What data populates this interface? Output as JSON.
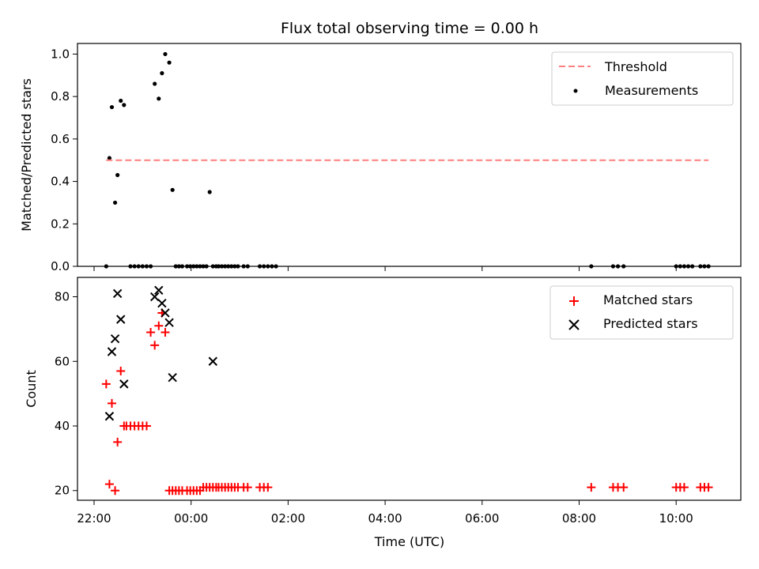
{
  "chart_data": [
    {
      "type": "scatter",
      "title": "Flux total observing time = 0.00 h",
      "xlabel": "",
      "ylabel": "Matched/Predicted stars",
      "xlim": [
        "21:45",
        "11:20"
      ],
      "ylim": [
        0,
        1.05
      ],
      "y_ticks": [
        0.0,
        0.2,
        0.4,
        0.6,
        0.8,
        1.0
      ],
      "y_tick_labels": [
        "0.0",
        "0.2",
        "0.4",
        "0.6",
        "0.8",
        "1.0"
      ],
      "legend_position": "upper right",
      "threshold": {
        "name": "Threshold",
        "value": 0.5,
        "x_start": "22:15",
        "x_end": "10:40",
        "color": "#ff7f7f"
      },
      "series": [
        {
          "name": "Measurements",
          "color": "#000000",
          "marker": "dot",
          "x": [
            "22:15",
            "22:19",
            "22:22",
            "22:26",
            "22:29",
            "22:33",
            "22:37",
            "22:45",
            "22:50",
            "22:55",
            "23:00",
            "23:05",
            "23:10",
            "23:15",
            "23:20",
            "23:24",
            "23:28",
            "23:33",
            "23:37",
            "23:41",
            "23:45",
            "23:49",
            "23:55",
            "23:59",
            "00:03",
            "00:07",
            "00:11",
            "00:15",
            "00:19",
            "00:23",
            "00:27",
            "00:31",
            "00:34",
            "00:38",
            "00:42",
            "00:46",
            "00:50",
            "00:54",
            "00:58",
            "01:05",
            "01:10",
            "01:25",
            "01:30",
            "01:35",
            "01:40",
            "01:45",
            "08:15",
            "08:42",
            "08:48",
            "08:55",
            "10:00",
            "10:05",
            "10:10",
            "10:15",
            "10:20",
            "10:30",
            "10:35",
            "10:40"
          ],
          "y": [
            0.0,
            0.51,
            0.75,
            0.3,
            0.43,
            0.78,
            0.76,
            0.0,
            0.0,
            0.0,
            0.0,
            0.0,
            0.0,
            0.86,
            0.79,
            0.91,
            1.0,
            0.96,
            0.36,
            0.0,
            0.0,
            0.0,
            0.0,
            0.0,
            0.0,
            0.0,
            0.0,
            0.0,
            0.0,
            0.35,
            0.0,
            0.0,
            0.0,
            0.0,
            0.0,
            0.0,
            0.0,
            0.0,
            0.0,
            0.0,
            0.0,
            0.0,
            0.0,
            0.0,
            0.0,
            0.0,
            0.0,
            0.0,
            0.0,
            0.0,
            0.0,
            0.0,
            0.0,
            0.0,
            0.0,
            0.0,
            0.0,
            0.0
          ]
        }
      ]
    },
    {
      "type": "scatter",
      "title": "",
      "xlabel": "Time (UTC)",
      "ylabel": "Count",
      "xlim": [
        "21:45",
        "11:20"
      ],
      "ylim": [
        17,
        86
      ],
      "x_tick_labels": [
        "22:00",
        "00:00",
        "02:00",
        "04:00",
        "06:00",
        "08:00",
        "10:00"
      ],
      "y_ticks": [
        20,
        40,
        60,
        80
      ],
      "y_tick_labels": [
        "20",
        "40",
        "60",
        "80"
      ],
      "legend_position": "upper right",
      "series": [
        {
          "name": "Matched stars",
          "color": "#ff0000",
          "marker": "plus",
          "x": [
            "22:15",
            "22:19",
            "22:22",
            "22:26",
            "22:29",
            "22:33",
            "22:37",
            "22:40",
            "22:45",
            "22:50",
            "22:55",
            "23:00",
            "23:05",
            "23:10",
            "23:15",
            "23:20",
            "23:24",
            "23:28",
            "23:33",
            "23:37",
            "23:41",
            "23:45",
            "23:49",
            "23:55",
            "23:59",
            "00:03",
            "00:07",
            "00:11",
            "00:15",
            "00:19",
            "00:23",
            "00:27",
            "00:31",
            "00:34",
            "00:38",
            "00:42",
            "00:46",
            "00:50",
            "00:54",
            "00:58",
            "01:05",
            "01:10",
            "01:25",
            "01:30",
            "01:35",
            "08:15",
            "08:42",
            "08:48",
            "08:55",
            "10:00",
            "10:05",
            "10:10",
            "10:30",
            "10:35",
            "10:40"
          ],
          "y": [
            53,
            22,
            47,
            20,
            35,
            57,
            40,
            40,
            40,
            40,
            40,
            40,
            40,
            69,
            65,
            71,
            75,
            69,
            20,
            20,
            20,
            20,
            20,
            20,
            20,
            20,
            20,
            20,
            21,
            21,
            21,
            21,
            21,
            21,
            21,
            21,
            21,
            21,
            21,
            21,
            21,
            21,
            21,
            21,
            21,
            21,
            21,
            21,
            21,
            21,
            21,
            21,
            21,
            21,
            21
          ]
        },
        {
          "name": "Predicted stars",
          "color": "#000000",
          "marker": "x",
          "x": [
            "22:19",
            "22:22",
            "22:26",
            "22:29",
            "22:33",
            "22:37",
            "23:15",
            "23:20",
            "23:24",
            "23:28",
            "23:33",
            "23:37",
            "00:27"
          ],
          "y": [
            43,
            63,
            67,
            81,
            73,
            53,
            80,
            82,
            78,
            75,
            72,
            55,
            60
          ]
        }
      ]
    }
  ]
}
